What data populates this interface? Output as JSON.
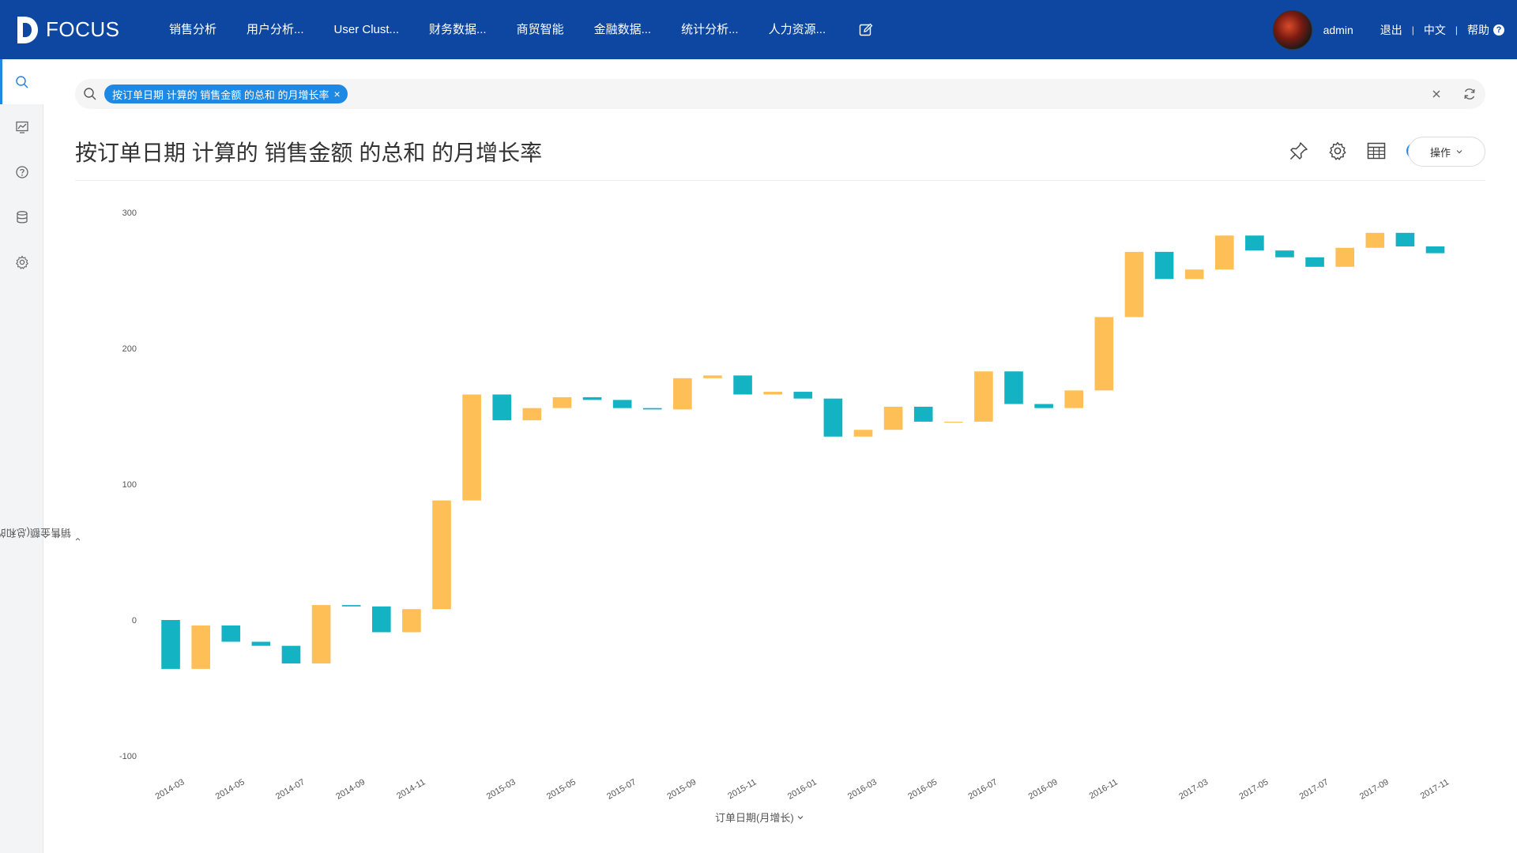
{
  "brand": {
    "name": "FOCUS"
  },
  "nav": {
    "items": [
      "销售分析",
      "用户分析...",
      "User Clust...",
      "财务数据...",
      "商贸智能",
      "金融数据...",
      "统计分析...",
      "人力资源..."
    ]
  },
  "user": {
    "name": "admin",
    "logout": "退出",
    "language": "中文",
    "help": "帮助",
    "help_icon": "?"
  },
  "sidebar": {
    "items": [
      "search-icon",
      "dashboard-icon",
      "help-icon",
      "database-icon",
      "settings-icon"
    ]
  },
  "search": {
    "chip_label": "按订单日期 计算的 销售金额 的总和 的月增长率",
    "chip_close": "×"
  },
  "page": {
    "title": "按订单日期 计算的 销售金额 的总和 的月增长率",
    "ops_label": "操作"
  },
  "colors": {
    "nav_bg": "#0d47a1",
    "accent": "#1e88e5",
    "increase": "#ffbf57",
    "decrease": "#14b3c4"
  },
  "chart_data": {
    "type": "waterfall",
    "title": "",
    "xlabel": "订单日期(月增长)",
    "ylabel": "销售金额(总和的增长率)",
    "ylim": [
      -100,
      300
    ],
    "yticks": [
      300,
      200,
      100,
      0,
      -100
    ],
    "x_tick_labels": [
      "2014-03",
      "2014-05",
      "2014-07",
      "2014-09",
      "2014-11",
      "2015-03",
      "2015-05",
      "2015-07",
      "2015-09",
      "2015-11",
      "2016-01",
      "2016-03",
      "2016-05",
      "2016-07",
      "2016-09",
      "2016-11",
      "2017-03",
      "2017-05",
      "2017-07",
      "2017-09",
      "2017-11"
    ],
    "series": [
      {
        "values": [
          {
            "x": "2014-03",
            "from": 0,
            "to": -36
          },
          {
            "x": "2014-04",
            "from": -36,
            "to": -4
          },
          {
            "x": "2014-05",
            "from": -4,
            "to": -16
          },
          {
            "x": "2014-06",
            "from": -16,
            "to": -19
          },
          {
            "x": "2014-07",
            "from": -19,
            "to": -32
          },
          {
            "x": "2014-08",
            "from": -32,
            "to": 11
          },
          {
            "x": "2014-09",
            "from": 11,
            "to": 10
          },
          {
            "x": "2014-10",
            "from": 10,
            "to": -9
          },
          {
            "x": "2014-11",
            "from": -9,
            "to": 8
          },
          {
            "x": "2014-12",
            "from": 8,
            "to": 88
          },
          {
            "x": "2015-02",
            "from": 88,
            "to": 166
          },
          {
            "x": "2015-03",
            "from": 166,
            "to": 147
          },
          {
            "x": "2015-04",
            "from": 147,
            "to": 156
          },
          {
            "x": "2015-05",
            "from": 156,
            "to": 164
          },
          {
            "x": "2015-06",
            "from": 164,
            "to": 162
          },
          {
            "x": "2015-07",
            "from": 162,
            "to": 156
          },
          {
            "x": "2015-08",
            "from": 156,
            "to": 155
          },
          {
            "x": "2015-09",
            "from": 155,
            "to": 178
          },
          {
            "x": "2015-10",
            "from": 178,
            "to": 180
          },
          {
            "x": "2015-11",
            "from": 180,
            "to": 166
          },
          {
            "x": "2015-12",
            "from": 166,
            "to": 168
          },
          {
            "x": "2016-01",
            "from": 168,
            "to": 163
          },
          {
            "x": "2016-02",
            "from": 163,
            "to": 135
          },
          {
            "x": "2016-03",
            "from": 135,
            "to": 140
          },
          {
            "x": "2016-04",
            "from": 140,
            "to": 157
          },
          {
            "x": "2016-05",
            "from": 157,
            "to": 146
          },
          {
            "x": "2016-06",
            "from": 146,
            "to": 146
          },
          {
            "x": "2016-07",
            "from": 146,
            "to": 183
          },
          {
            "x": "2016-08",
            "from": 183,
            "to": 159
          },
          {
            "x": "2016-09",
            "from": 159,
            "to": 156
          },
          {
            "x": "2016-10",
            "from": 156,
            "to": 169
          },
          {
            "x": "2016-11",
            "from": 169,
            "to": 223
          },
          {
            "x": "2016-12",
            "from": 223,
            "to": 271
          },
          {
            "x": "2017-02",
            "from": 271,
            "to": 251
          },
          {
            "x": "2017-03",
            "from": 251,
            "to": 258
          },
          {
            "x": "2017-04",
            "from": 258,
            "to": 283
          },
          {
            "x": "2017-05",
            "from": 283,
            "to": 272
          },
          {
            "x": "2017-06",
            "from": 272,
            "to": 267
          },
          {
            "x": "2017-07",
            "from": 267,
            "to": 260
          },
          {
            "x": "2017-08",
            "from": 260,
            "to": 274
          },
          {
            "x": "2017-09",
            "from": 274,
            "to": 285
          },
          {
            "x": "2017-10",
            "from": 285,
            "to": 275
          },
          {
            "x": "2017-11",
            "from": 275,
            "to": 270
          }
        ]
      }
    ],
    "grid": false,
    "legend": "none"
  }
}
